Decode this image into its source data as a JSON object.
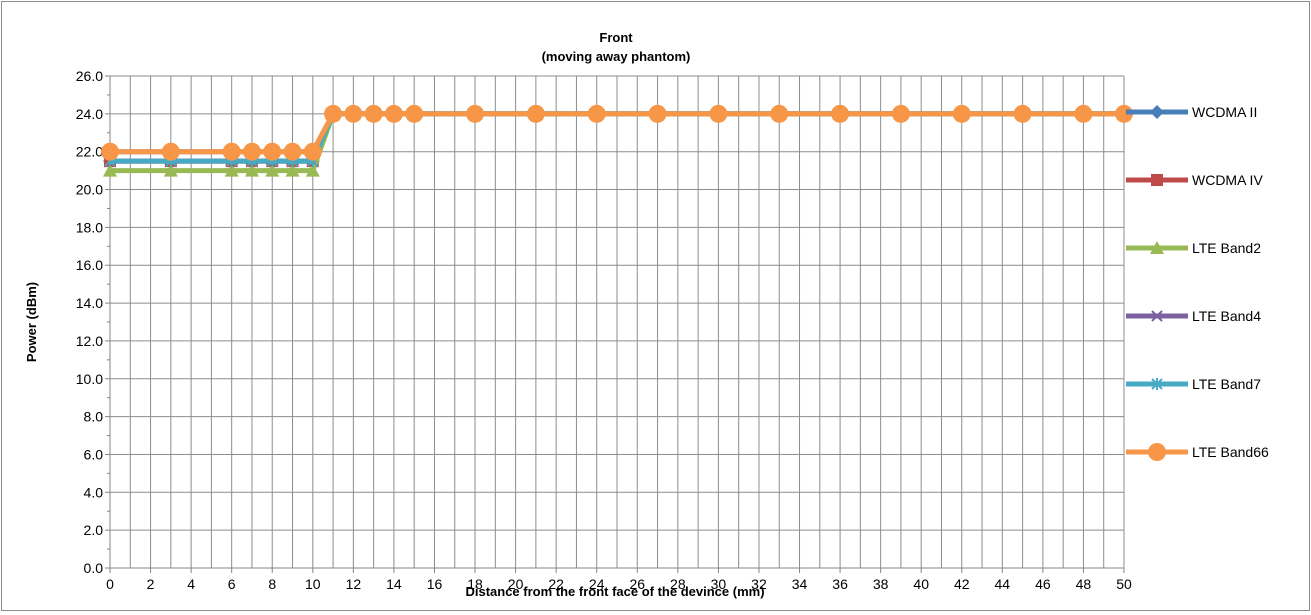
{
  "chart_data": {
    "type": "line",
    "title": "Front",
    "subtitle": "(moving away phantom)",
    "xlabel": "Distance from the front face of the devince (mm)",
    "ylabel": "Power (dBm)",
    "xlim": [
      0,
      50
    ],
    "ylim": [
      0,
      26
    ],
    "x_tick_labels": [
      "0",
      "2",
      "4",
      "6",
      "8",
      "10",
      "12",
      "14",
      "16",
      "18",
      "20",
      "22",
      "24",
      "26",
      "28",
      "30",
      "32",
      "34",
      "36",
      "38",
      "40",
      "42",
      "44",
      "46",
      "48",
      "50"
    ],
    "y_tick_labels": [
      "0.0",
      "2.0",
      "4.0",
      "6.0",
      "8.0",
      "10.0",
      "12.0",
      "14.0",
      "16.0",
      "18.0",
      "20.0",
      "22.0",
      "24.0",
      "26.0"
    ],
    "grid": true,
    "legend_position": "right",
    "x": [
      0,
      3,
      6,
      7,
      8,
      9,
      10,
      11,
      12,
      13,
      14,
      15,
      18,
      21,
      24,
      27,
      30,
      33,
      36,
      39,
      42,
      45,
      48,
      50
    ],
    "series": [
      {
        "name": "WCDMA II",
        "color": "#4a7ebb",
        "marker": "diamond",
        "values": [
          21.5,
          21.5,
          21.5,
          21.5,
          21.5,
          21.5,
          21.5,
          24,
          24,
          24,
          24,
          24,
          24,
          24,
          24,
          24,
          24,
          24,
          24,
          24,
          24,
          24,
          24,
          24
        ]
      },
      {
        "name": "WCDMA IV",
        "color": "#be4b48",
        "marker": "square",
        "values": [
          21.5,
          21.5,
          21.5,
          21.5,
          21.5,
          21.5,
          21.5,
          24,
          24,
          24,
          24,
          24,
          24,
          24,
          24,
          24,
          24,
          24,
          24,
          24,
          24,
          24,
          24,
          24
        ]
      },
      {
        "name": "LTE Band2",
        "color": "#98b954",
        "marker": "triangle",
        "values": [
          21,
          21,
          21,
          21,
          21,
          21,
          21,
          24,
          24,
          24,
          24,
          24,
          24,
          24,
          24,
          24,
          24,
          24,
          24,
          24,
          24,
          24,
          24,
          24
        ]
      },
      {
        "name": "LTE Band4",
        "color": "#7d60a0",
        "marker": "x",
        "values": [
          22,
          22,
          22,
          22,
          22,
          22,
          22,
          24,
          24,
          24,
          24,
          24,
          24,
          24,
          24,
          24,
          24,
          24,
          24,
          24,
          24,
          24,
          24,
          24
        ]
      },
      {
        "name": "LTE Band7",
        "color": "#46aac5",
        "marker": "star",
        "values": [
          21.5,
          21.5,
          21.5,
          21.5,
          21.5,
          21.5,
          21.5,
          24,
          24,
          24,
          24,
          24,
          24,
          24,
          24,
          24,
          24,
          24,
          24,
          24,
          24,
          24,
          24,
          24
        ]
      },
      {
        "name": "LTE Band66",
        "color": "#f79646",
        "marker": "circle",
        "values": [
          22,
          22,
          22,
          22,
          22,
          22,
          22,
          24,
          24,
          24,
          24,
          24,
          24,
          24,
          24,
          24,
          24,
          24,
          24,
          24,
          24,
          24,
          24,
          24
        ]
      }
    ]
  }
}
